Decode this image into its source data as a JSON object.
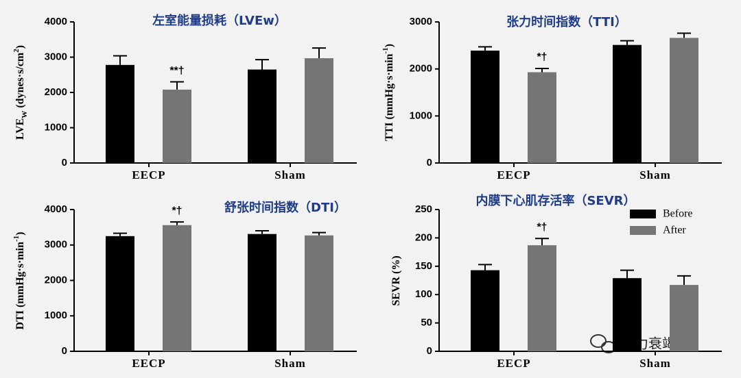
{
  "chart_data": [
    {
      "type": "bar",
      "title": "左室能量损耗（LVEw）",
      "ylabel": [
        {
          "text": "LVE"
        },
        {
          "text": "W",
          "shift": "sub"
        },
        {
          "text": " (dynes·s/cm"
        },
        {
          "text": "2",
          "shift": "super"
        },
        {
          "text": ")"
        }
      ],
      "categories": [
        "EECP",
        "Sham"
      ],
      "series": [
        {
          "color": "#000000",
          "values": [
            2780,
            2650
          ],
          "errors": [
            260,
            280
          ]
        },
        {
          "color": "#757575",
          "values": [
            2080,
            2970
          ],
          "errors": [
            220,
            290
          ]
        }
      ],
      "annotation": "**†",
      "ylim": [
        0,
        4000
      ],
      "yticks": [
        0,
        1000,
        2000,
        3000,
        4000
      ]
    },
    {
      "type": "bar",
      "title": "张力时间指数（TTI）",
      "ylabel": [
        {
          "text": "TTI (mmHg·s·min"
        },
        {
          "text": "-1",
          "shift": "super"
        },
        {
          "text": ")"
        }
      ],
      "categories": [
        "EECP",
        "Sham"
      ],
      "series": [
        {
          "color": "#000000",
          "values": [
            2390,
            2510
          ],
          "errors": [
            80,
            90
          ]
        },
        {
          "color": "#757575",
          "values": [
            1930,
            2660
          ],
          "errors": [
            80,
            100
          ]
        }
      ],
      "annotation": "*†",
      "ylim": [
        0,
        3000
      ],
      "yticks": [
        0,
        1000,
        2000,
        3000
      ]
    },
    {
      "type": "bar",
      "title": "舒张时间指数（DTI）",
      "ylabel": [
        {
          "text": "DTI (mmHg·s·min"
        },
        {
          "text": "-1",
          "shift": "super"
        },
        {
          "text": ")"
        }
      ],
      "categories": [
        "EECP",
        "Sham"
      ],
      "series": [
        {
          "color": "#000000",
          "values": [
            3250,
            3310
          ],
          "errors": [
            80,
            90
          ]
        },
        {
          "color": "#757575",
          "values": [
            3560,
            3270
          ],
          "errors": [
            90,
            80
          ]
        }
      ],
      "annotation": "*†",
      "ylim": [
        0,
        4000
      ],
      "yticks": [
        0,
        1000,
        2000,
        3000,
        4000
      ]
    },
    {
      "type": "bar",
      "title": "内膜下心肌存活率（SEVR）",
      "ylabel": [
        {
          "text": "SEVR (%)"
        }
      ],
      "categories": [
        "EECP",
        "Sham"
      ],
      "series": [
        {
          "name": "Before",
          "color": "#000000",
          "values": [
            143,
            129
          ],
          "errors": [
            10,
            14
          ]
        },
        {
          "name": "After",
          "color": "#757575",
          "values": [
            187,
            117
          ],
          "errors": [
            12,
            16
          ]
        }
      ],
      "annotation": "*†",
      "legend": "upper right",
      "ylim": [
        0,
        250
      ],
      "yticks": [
        0,
        50,
        100,
        150,
        200,
        250
      ]
    }
  ],
  "watermark": "心力衰竭网"
}
